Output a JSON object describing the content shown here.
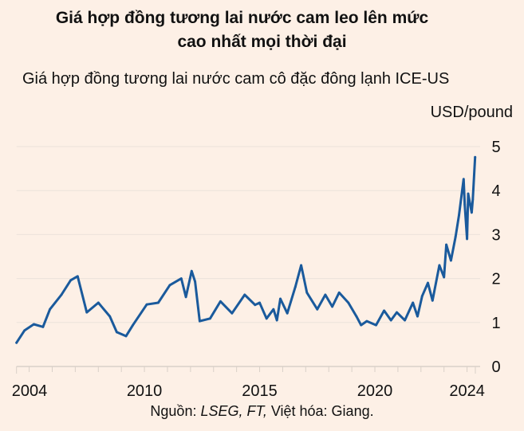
{
  "chart_data": {
    "type": "line",
    "title": [
      "Giá hợp đồng tương lai nước cam leo lên mức",
      "cao nhất mọi thời đại"
    ],
    "subtitle": "Giá hợp đồng tương lai nước cam cô đặc đông lạnh ICE-US",
    "ylabel": "USD/pound",
    "xlabel": "",
    "xlim": [
      2004.45,
      2024.36
    ],
    "ylim": [
      0,
      5
    ],
    "x_ticks": [
      2004,
      2010,
      2015,
      2020,
      2024
    ],
    "x_tick_labels": [
      "2004",
      "2010",
      "2015",
      "2020",
      "2024"
    ],
    "y_ticks": [
      0,
      1,
      2,
      3,
      4,
      5
    ],
    "y_tick_labels": [
      "0",
      "1",
      "2",
      "3",
      "4",
      "5"
    ],
    "grid": "horizontal",
    "y_axis_position": "right",
    "line_color": "#1a5a9c",
    "background": "#fdf0e6",
    "series": [
      {
        "x": [
          2004.45,
          2004.8,
          2005.2,
          2005.6,
          2005.9,
          2006.4,
          2006.8,
          2007.1,
          2007.5,
          2008.0,
          2008.5,
          2008.8,
          2009.2,
          2009.5,
          2010.1,
          2010.6,
          2011.1,
          2011.6,
          2011.8,
          2012.05,
          2012.2,
          2012.4,
          2012.85,
          2013.3,
          2013.8,
          2014.35,
          2014.8,
          2015.0,
          2015.3,
          2015.6,
          2015.75,
          2015.9,
          2016.2,
          2016.55,
          2016.8,
          2017.05,
          2017.5,
          2017.85,
          2018.15,
          2018.45,
          2018.85,
          2019.2,
          2019.4,
          2019.65,
          2020.05,
          2020.4,
          2020.7,
          2020.95,
          2021.3,
          2021.65,
          2021.85,
          2022.05,
          2022.3,
          2022.5,
          2022.8,
          2023.0,
          2023.1,
          2023.3,
          2023.5,
          2023.65,
          2023.85,
          2023.9,
          2024.0,
          2024.05,
          2024.2,
          2024.25,
          2024.35
        ],
        "y": [
          0.54,
          0.82,
          0.96,
          0.9,
          1.3,
          1.63,
          1.96,
          2.05,
          1.23,
          1.45,
          1.14,
          0.78,
          0.69,
          0.94,
          1.41,
          1.45,
          1.85,
          2.0,
          1.58,
          2.17,
          1.93,
          1.03,
          1.09,
          1.48,
          1.21,
          1.63,
          1.4,
          1.45,
          1.09,
          1.3,
          1.05,
          1.54,
          1.21,
          1.81,
          2.3,
          1.68,
          1.3,
          1.63,
          1.36,
          1.68,
          1.45,
          1.14,
          0.94,
          1.03,
          0.94,
          1.27,
          1.05,
          1.23,
          1.05,
          1.45,
          1.14,
          1.6,
          1.9,
          1.5,
          2.3,
          2.03,
          2.77,
          2.41,
          2.95,
          3.44,
          4.26,
          3.68,
          2.9,
          3.93,
          3.5,
          3.8,
          4.76
        ]
      }
    ]
  },
  "source": {
    "prefix": "Nguồn: ",
    "italic": "LSEG, FT,",
    "suffix": " Việt hóa: Giang."
  }
}
